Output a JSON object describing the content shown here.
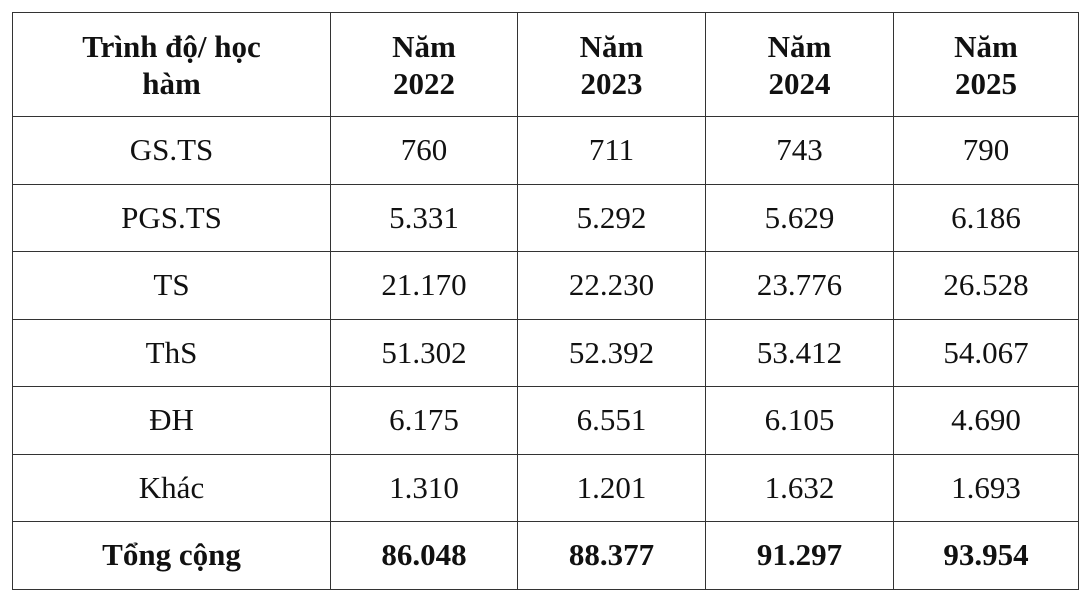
{
  "table": {
    "header": [
      [
        "Trình độ/ học",
        "hàm"
      ],
      [
        "Năm",
        "2022"
      ],
      [
        "Năm",
        "2023"
      ],
      [
        "Năm",
        "2024"
      ],
      [
        "Năm",
        "2025"
      ]
    ],
    "rows": [
      [
        "GS.TS",
        "760",
        "711",
        "743",
        "790"
      ],
      [
        "PGS.TS",
        "5.331",
        "5.292",
        "5.629",
        "6.186"
      ],
      [
        "TS",
        "21.170",
        "22.230",
        "23.776",
        "26.528"
      ],
      [
        "ThS",
        "51.302",
        "52.392",
        "53.412",
        "54.067"
      ],
      [
        "ĐH",
        "6.175",
        "6.551",
        "6.105",
        "4.690"
      ],
      [
        "Khác",
        "1.310",
        "1.201",
        "1.632",
        "1.693"
      ]
    ],
    "total": [
      "Tổng cộng",
      "86.048",
      "88.377",
      "91.297",
      "93.954"
    ]
  }
}
